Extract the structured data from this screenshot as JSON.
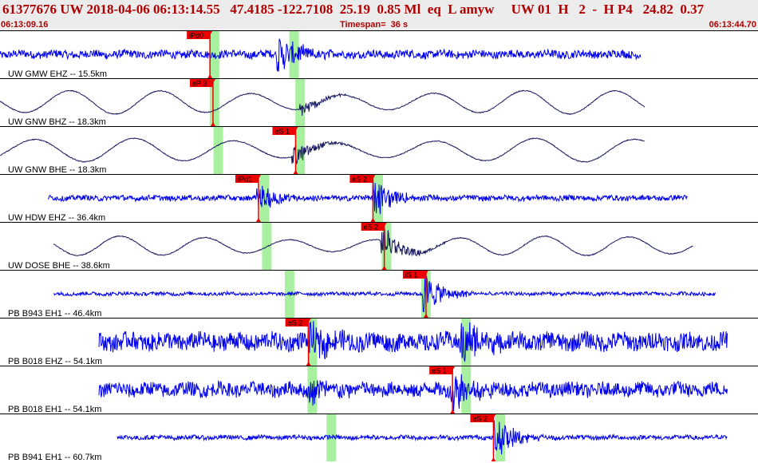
{
  "header": {
    "title": "61377676 UW 2018-04-06 06:13:14.55   47.4185 -122.7108  25.19  0.85 Ml  eq  L amyw     UW 01  H   2  -  H P4   24.82  0.37",
    "start_time": "06:13:09.16",
    "timespan": "Timespan=  36 s",
    "end_time": "06:13:44.70"
  },
  "colors": {
    "trace_blue": "#0000ee",
    "trace_dark": "#1a1a60",
    "pick_red": "#ee0000",
    "window_green": "#a8f0a0",
    "header_text": "#b00000",
    "header_bg": "#ececec"
  },
  "traces": [
    {
      "label": "UW GMW EHZ -- 15.5km",
      "color": "blue",
      "style": "noise",
      "amp": 0.18,
      "start": 0.0,
      "end": 0.845,
      "burst_at": 0.37,
      "burst_amp": 0.85,
      "picks": [
        {
          "label": "iPd0",
          "pos": 0.277
        }
      ],
      "windows": [
        0.283,
        0.388
      ]
    },
    {
      "label": "UW GNW BHZ -- 18.3km",
      "color": "dark",
      "style": "wave",
      "amp": 0.55,
      "start": 0.0,
      "end": 0.85,
      "burst_at": 0.4,
      "burst_amp": 0.35,
      "picks": [
        {
          "label": "eP 3",
          "pos": 0.281
        }
      ],
      "windows": [
        0.283,
        0.396
      ]
    },
    {
      "label": "UW GNW BHE -- 18.3km",
      "color": "dark",
      "style": "wave",
      "amp": 0.55,
      "start": 0.0,
      "end": 0.85,
      "burst_at": 0.39,
      "burst_amp": 0.5,
      "picks": [
        {
          "label": "eS 1",
          "pos": 0.39
        }
      ],
      "windows": [
        0.288,
        0.396
      ]
    },
    {
      "label": "UW HDW EHZ -- 36.4km",
      "color": "blue",
      "style": "noise",
      "amp": 0.12,
      "start": 0.063,
      "end": 0.907,
      "burst_at": 0.343,
      "burst_amp": 0.55,
      "burst2_at": 0.495,
      "burst2_amp": 0.9,
      "picks": [
        {
          "label": "iPd1",
          "pos": 0.341
        },
        {
          "label": "eS 2",
          "pos": 0.492
        }
      ],
      "windows": [
        0.349,
        0.499
      ]
    },
    {
      "label": "UW DOSE BHE -- 38.6km",
      "color": "dark",
      "style": "wave",
      "amp": 0.45,
      "start": 0.07,
      "end": 0.915,
      "burst_at": 0.507,
      "burst_amp": 0.7,
      "picks": [
        {
          "label": "eS 2",
          "pos": 0.507
        }
      ],
      "windows": [
        0.352,
        0.51
      ]
    },
    {
      "label": "PB B943 EH1 -- 46.4km",
      "color": "blue",
      "style": "noise",
      "amp": 0.08,
      "start": 0.07,
      "end": 0.944,
      "burst_at": 0.562,
      "burst_amp": 0.9,
      "picks": [
        {
          "label": "iS 1",
          "pos": 0.562
        }
      ],
      "windows": [
        0.382,
        0.562
      ]
    },
    {
      "label": "PB B018 EHZ -- 54.1km",
      "color": "blue",
      "style": "noise",
      "amp": 0.4,
      "start": 0.13,
      "end": 0.96,
      "burst_at": 0.41,
      "burst_amp": 0.7,
      "burst2_at": 0.612,
      "burst2_amp": 0.9,
      "picks": [
        {
          "label": "eS 2",
          "pos": 0.407
        }
      ],
      "windows": [
        0.412,
        0.615
      ]
    },
    {
      "label": "PB B018 EH1 -- 54.1km",
      "color": "blue",
      "style": "noise",
      "amp": 0.32,
      "start": 0.13,
      "end": 0.96,
      "burst_at": 0.41,
      "burst_amp": 0.55,
      "burst2_at": 0.6,
      "burst2_amp": 0.9,
      "picks": [
        {
          "label": "eS 1",
          "pos": 0.597
        }
      ],
      "windows": [
        0.412,
        0.615
      ]
    },
    {
      "label": "PB B941 EH1 -- 60.7km",
      "color": "blue",
      "style": "noise",
      "amp": 0.1,
      "start": 0.155,
      "end": 0.96,
      "burst_at": 0.656,
      "burst_amp": 0.9,
      "picks": [
        {
          "label": "eS 2",
          "pos": 0.651
        }
      ],
      "windows": [
        0.437,
        0.66
      ]
    }
  ]
}
